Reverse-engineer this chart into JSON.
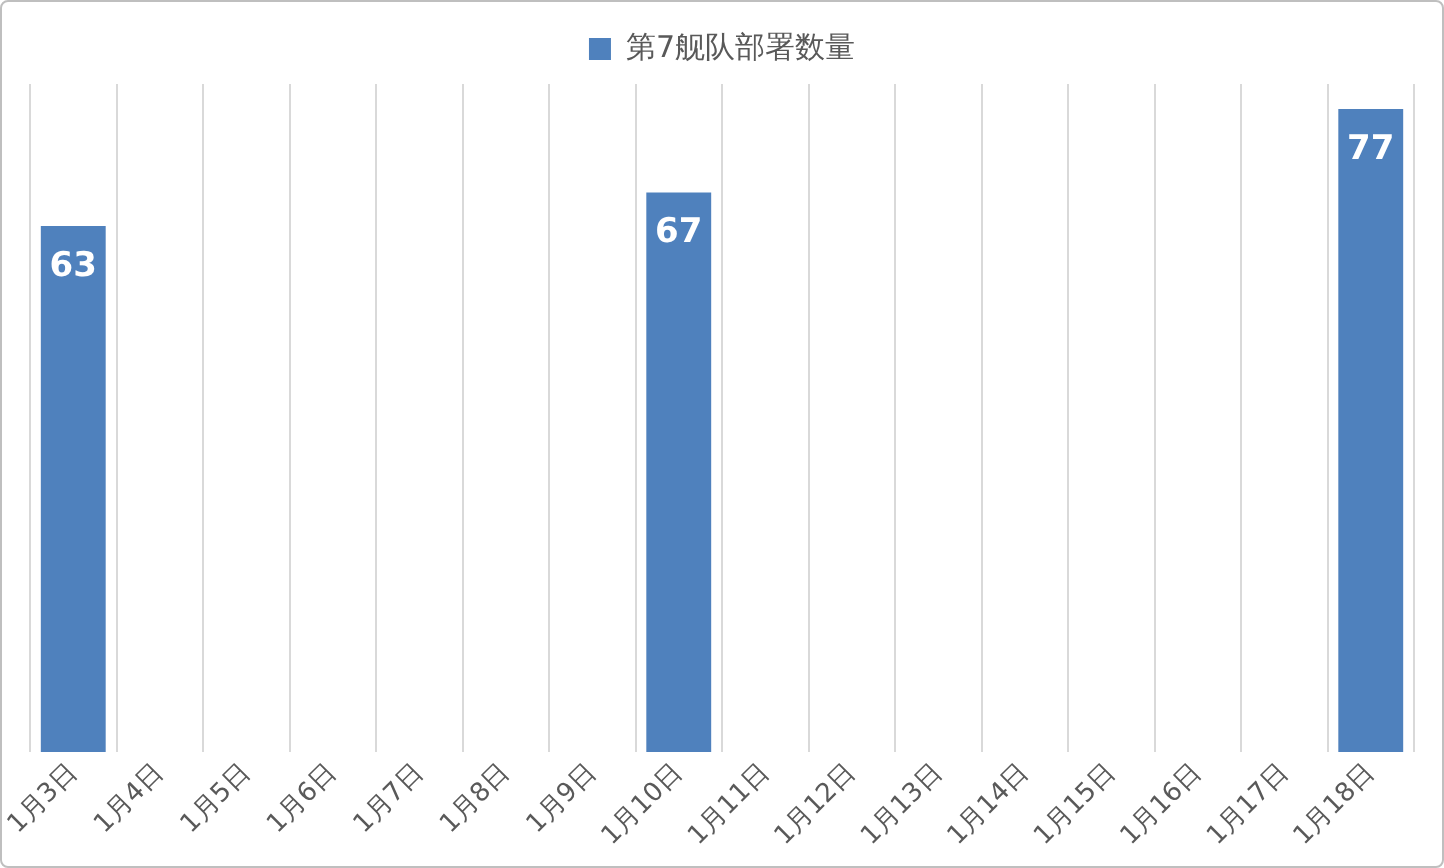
{
  "chart_data": {
    "type": "bar",
    "categories": [
      "1月3日",
      "1月4日",
      "1月5日",
      "1月6日",
      "1月7日",
      "1月8日",
      "1月9日",
      "1月10日",
      "1月11日",
      "1月12日",
      "1月13日",
      "1月14日",
      "1月15日",
      "1月16日",
      "1月17日",
      "1月18日"
    ],
    "series": [
      {
        "name": "第7舰队部署数量",
        "color": "#4f81bd",
        "values": [
          63,
          null,
          null,
          null,
          null,
          null,
          null,
          67,
          null,
          null,
          null,
          null,
          null,
          null,
          null,
          77
        ]
      }
    ],
    "data_labels": true,
    "grid": "x",
    "legend": "top"
  }
}
